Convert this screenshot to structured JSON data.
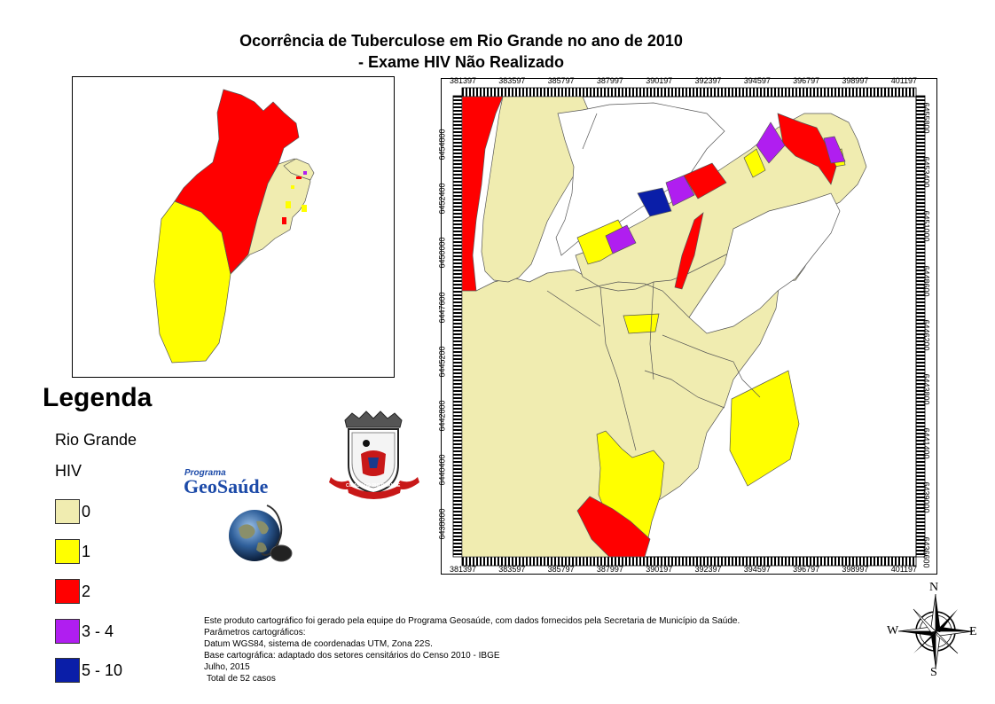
{
  "title": {
    "line1": "Ocorrência de Tuberculose em Rio Grande no ano de 2010",
    "line2": "- Exame HIV Não Realizado"
  },
  "legend": {
    "heading": "Legenda",
    "layer": "Rio Grande",
    "variable": "HIV",
    "classes": [
      {
        "label": "0",
        "color": "#f0ecb0"
      },
      {
        "label": "1",
        "color": "#ffff00"
      },
      {
        "label": "2",
        "color": "#ff0000"
      },
      {
        "label": "3 - 4",
        "color": "#b01ef0"
      },
      {
        "label": "5 - 10",
        "color": "#0a1ea8"
      }
    ]
  },
  "logos": {
    "program_small": "Programa",
    "program_big": "GeoSaúde",
    "crest_ribbon": "CIDADE DO RIO GRANDE"
  },
  "axes": {
    "x_ticks": [
      "381397",
      "383597",
      "385797",
      "387997",
      "390197",
      "392397",
      "394597",
      "396797",
      "398997",
      "401197"
    ],
    "y_left_ticks": [
      "6454800",
      "6452400",
      "6450000",
      "6447600",
      "6445200",
      "6442800",
      "6440400",
      "6438000"
    ],
    "y_right_ticks": [
      "6455800",
      "6453400",
      "6451000",
      "6448600",
      "6446200",
      "6443800",
      "6441400",
      "6439000",
      "6436600"
    ]
  },
  "compass": {
    "n": "N",
    "s": "S",
    "e": "E",
    "w": "W"
  },
  "notes": {
    "line1": "Este produto cartográfico foi gerado pela equipe do Programa Geosaúde, com dados fornecidos pela Secretaria de Município da Saúde.",
    "line2": "Parâmetros cartográficos:",
    "line3": "Datum WGS84, sistema de coordenadas UTM, Zona 22S.",
    "line4": "Base cartográfica: adaptado dos setores censitários do Censo 2010 - IBGE",
    "line5": "Julho, 2015",
    "line6": "Total de 52 casos"
  }
}
